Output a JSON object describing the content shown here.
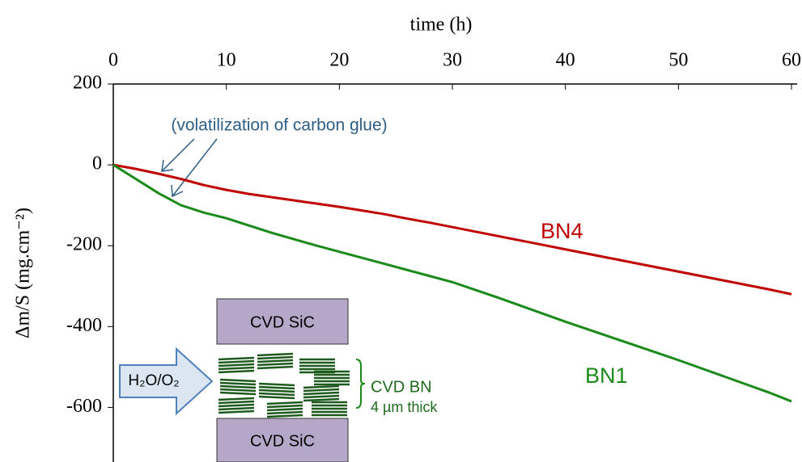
{
  "chart_data": {
    "type": "line",
    "xlabel": "time  (h)",
    "ylabel": "Δm/S (mg.cm⁻²)",
    "xlim": [
      0,
      60.5
    ],
    "xticks": [
      0,
      10,
      20,
      30,
      40,
      50,
      60
    ],
    "ylim": [
      -735,
      200
    ],
    "yticks": [
      200,
      0,
      -200,
      -400,
      -600
    ],
    "x": [
      0,
      2,
      4,
      6,
      8,
      10,
      12,
      14,
      16,
      18,
      20,
      22,
      24,
      26,
      28,
      30,
      32,
      34,
      36,
      38,
      40,
      42,
      44,
      46,
      48,
      50,
      52,
      54,
      56,
      58,
      60
    ],
    "series": [
      {
        "name": "BN4",
        "color": "#c00000",
        "values": [
          0,
          -10,
          -22,
          -35,
          -50,
          -62,
          -72,
          -80,
          -88,
          -96,
          -104,
          -113,
          -122,
          -133,
          -143,
          -154,
          -165,
          -176,
          -187,
          -198,
          -209,
          -220,
          -231,
          -242,
          -253,
          -264,
          -275,
          -286,
          -297,
          -308,
          -320
        ]
      },
      {
        "name": "BN1",
        "color": "#1a8a1a",
        "values": [
          0,
          -35,
          -70,
          -100,
          -118,
          -132,
          -150,
          -168,
          -184,
          -200,
          -215,
          -230,
          -245,
          -260,
          -275,
          -290,
          -309,
          -328,
          -348,
          -368,
          -388,
          -407,
          -426,
          -445,
          -464,
          -483,
          -503,
          -523,
          -543,
          -563,
          -585
        ]
      }
    ],
    "annotation": "(volatilization of carbon glue)",
    "inset": {
      "top": "CVD SiC",
      "bottom": "CVD SiC",
      "flow": "H₂O/O₂",
      "layer": "CVD BN",
      "thickness": "4 µm thick"
    }
  }
}
